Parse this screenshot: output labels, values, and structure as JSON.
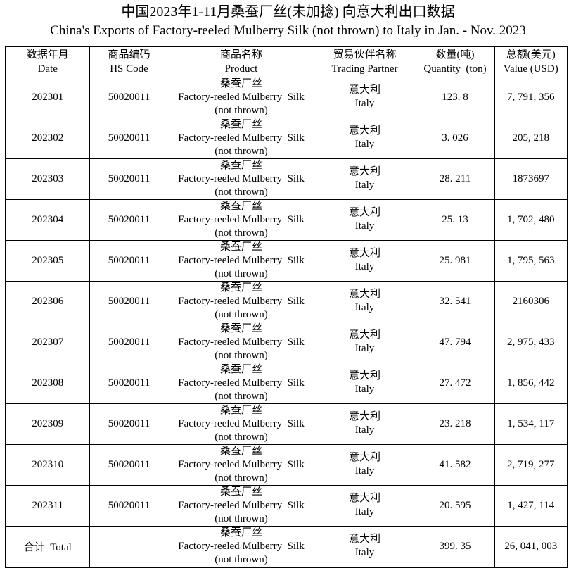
{
  "title": {
    "cn": "中国2023年1-11月桑蚕厂丝(未加捻) 向意大利出口数据",
    "en": "China's Exports of Factory-reeled Mulberry Silk (not thrown) to Italy in Jan. - Nov. 2023"
  },
  "table": {
    "headers": [
      {
        "cn": "数据年月",
        "en": "Date"
      },
      {
        "cn": "商品编码",
        "en": "HS Code"
      },
      {
        "cn": "商品名称",
        "en": "Product"
      },
      {
        "cn": "贸易伙伴名称",
        "en": "Trading Partner"
      },
      {
        "cn": "数量(吨)",
        "en": "Quantity  (ton)"
      },
      {
        "cn": "总额(美元)",
        "en": "Value (USD)"
      }
    ],
    "product": {
      "cn": "桑蚕厂丝",
      "en": "Factory-reeled Mulberry  Silk",
      "note": "(not thrown)"
    },
    "partner": {
      "cn": "意大利",
      "en": "Italy"
    },
    "rows": [
      {
        "date": "202301",
        "hs_code": "50020011",
        "quantity": "123. 8",
        "value": "7, 791, 356"
      },
      {
        "date": "202302",
        "hs_code": "50020011",
        "quantity": "3. 026",
        "value": "205, 218"
      },
      {
        "date": "202303",
        "hs_code": "50020011",
        "quantity": "28. 211",
        "value": "1873697"
      },
      {
        "date": "202304",
        "hs_code": "50020011",
        "quantity": "25. 13",
        "value": "1, 702, 480"
      },
      {
        "date": "202305",
        "hs_code": "50020011",
        "quantity": "25. 981",
        "value": "1, 795, 563"
      },
      {
        "date": "202306",
        "hs_code": "50020011",
        "quantity": "32. 541",
        "value": "2160306"
      },
      {
        "date": "202307",
        "hs_code": "50020011",
        "quantity": "47. 794",
        "value": "2, 975, 433"
      },
      {
        "date": "202308",
        "hs_code": "50020011",
        "quantity": "27. 472",
        "value": "1, 856, 442"
      },
      {
        "date": "202309",
        "hs_code": "50020011",
        "quantity": "23. 218",
        "value": "1, 534, 117"
      },
      {
        "date": "202310",
        "hs_code": "50020011",
        "quantity": "41. 582",
        "value": "2, 719, 277"
      },
      {
        "date": "202311",
        "hs_code": "50020011",
        "quantity": "20. 595",
        "value": "1, 427, 114"
      }
    ],
    "total": {
      "label": "合计  Total",
      "hs_code": "",
      "quantity": "399. 35",
      "value": "26, 041, 003"
    }
  },
  "colors": {
    "text": "#000000",
    "border": "#000000",
    "background": "#ffffff"
  }
}
